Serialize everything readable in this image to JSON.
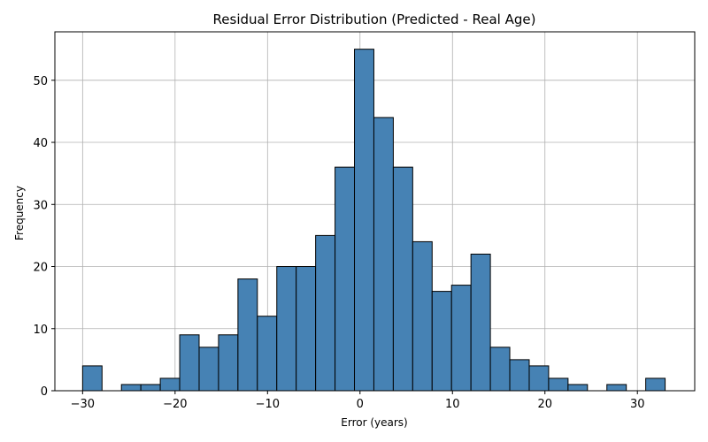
{
  "chart_data": {
    "type": "bar",
    "title": "Residual Error Distribution (Predicted - Real Age)",
    "xlabel": "Error (years)",
    "ylabel": "Frequency",
    "xlim": [
      -33.0,
      36.2
    ],
    "ylim": [
      0,
      57.8
    ],
    "xticks": [
      -30,
      -20,
      -10,
      0,
      10,
      20,
      30
    ],
    "xtick_labels": [
      "−30",
      "−20",
      "−10",
      "0",
      "10",
      "20",
      "30"
    ],
    "yticks": [
      0,
      10,
      20,
      30,
      40,
      50
    ],
    "ytick_labels": [
      "0",
      "10",
      "20",
      "30",
      "40",
      "50"
    ],
    "grid": true,
    "bar_color": "#4682b4",
    "edge_color": "#000000",
    "bins": [
      {
        "x0": -30.0,
        "x1": -27.9,
        "count": 4
      },
      {
        "x0": -27.9,
        "x1": -25.8,
        "count": 0
      },
      {
        "x0": -25.8,
        "x1": -23.7,
        "count": 1
      },
      {
        "x0": -23.7,
        "x1": -21.6,
        "count": 1
      },
      {
        "x0": -21.6,
        "x1": -19.5,
        "count": 2
      },
      {
        "x0": -19.5,
        "x1": -17.4,
        "count": 9
      },
      {
        "x0": -17.4,
        "x1": -15.3,
        "count": 7
      },
      {
        "x0": -15.3,
        "x1": -13.2,
        "count": 9
      },
      {
        "x0": -13.2,
        "x1": -11.1,
        "count": 18
      },
      {
        "x0": -11.1,
        "x1": -9.0,
        "count": 12
      },
      {
        "x0": -9.0,
        "x1": -6.9,
        "count": 20
      },
      {
        "x0": -6.9,
        "x1": -4.8,
        "count": 20
      },
      {
        "x0": -4.8,
        "x1": -2.7,
        "count": 25
      },
      {
        "x0": -2.7,
        "x1": -0.6,
        "count": 36
      },
      {
        "x0": -0.6,
        "x1": 1.5,
        "count": 55
      },
      {
        "x0": 1.5,
        "x1": 3.6,
        "count": 44
      },
      {
        "x0": 3.6,
        "x1": 5.7,
        "count": 36
      },
      {
        "x0": 5.7,
        "x1": 7.8,
        "count": 24
      },
      {
        "x0": 7.8,
        "x1": 9.9,
        "count": 16
      },
      {
        "x0": 9.9,
        "x1": 12.0,
        "count": 17
      },
      {
        "x0": 12.0,
        "x1": 14.1,
        "count": 22
      },
      {
        "x0": 14.1,
        "x1": 16.2,
        "count": 7
      },
      {
        "x0": 16.2,
        "x1": 18.3,
        "count": 5
      },
      {
        "x0": 18.3,
        "x1": 20.4,
        "count": 4
      },
      {
        "x0": 20.4,
        "x1": 22.5,
        "count": 2
      },
      {
        "x0": 22.5,
        "x1": 24.6,
        "count": 1
      },
      {
        "x0": 24.6,
        "x1": 26.7,
        "count": 0
      },
      {
        "x0": 26.7,
        "x1": 28.8,
        "count": 1
      },
      {
        "x0": 28.8,
        "x1": 30.9,
        "count": 0
      },
      {
        "x0": 30.9,
        "x1": 33.0,
        "count": 2
      }
    ]
  }
}
